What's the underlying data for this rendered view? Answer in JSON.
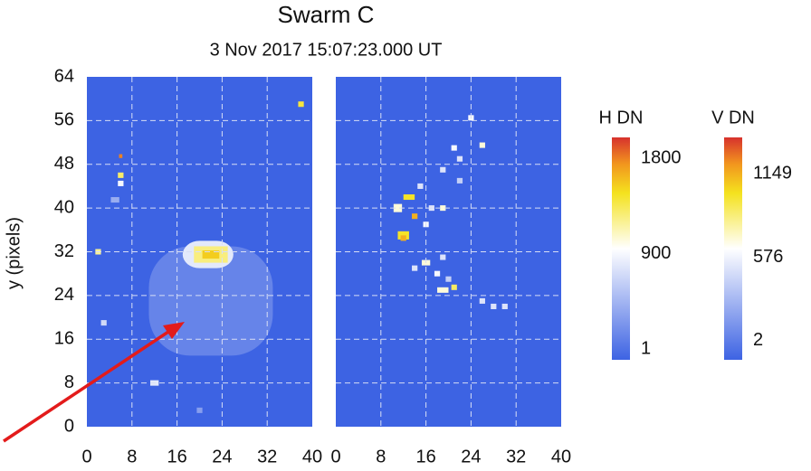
{
  "chart_data": {
    "type": "heatmap",
    "title": "Swarm C",
    "subtitle": "3 Nov 2017 15:07:23.000 UT",
    "y_label": "y (pixels)",
    "xlim": [
      0,
      40
    ],
    "xticks": [
      0,
      8,
      16,
      24,
      32,
      40
    ],
    "ylim": [
      0,
      64
    ],
    "yticks": [
      0,
      8,
      16,
      24,
      32,
      40,
      48,
      56,
      64
    ],
    "grid": true,
    "background_color": "#3d63e3",
    "panels": [
      {
        "colorbar_label": "H DN",
        "clim": [
          -100,
          2000
        ],
        "cticks": [
          1,
          900,
          1800
        ],
        "spots": [
          {
            "x": 22,
            "y": 23,
            "w": 22,
            "h": 20,
            "value": 120
          },
          {
            "x": 21.5,
            "y": 31.5,
            "w": 9,
            "h": 5,
            "value": 800
          },
          {
            "x": 22,
            "y": 31.5,
            "w": 6,
            "h": 3,
            "value": 1250
          },
          {
            "x": 22,
            "y": 31.5,
            "w": 3,
            "h": 1.5,
            "value": 1550
          },
          {
            "x": 38,
            "y": 59,
            "w": 1,
            "h": 1,
            "value": 1400
          },
          {
            "x": 6,
            "y": 49.5,
            "w": 0.6,
            "h": 0.7,
            "value": 1800
          },
          {
            "x": 6,
            "y": 46,
            "w": 1,
            "h": 1,
            "value": 1300
          },
          {
            "x": 6,
            "y": 44.5,
            "w": 1,
            "h": 1,
            "value": 900
          },
          {
            "x": 5,
            "y": 41.5,
            "w": 1.5,
            "h": 1,
            "value": 400
          },
          {
            "x": 2,
            "y": 32,
            "w": 1,
            "h": 1,
            "value": 1200
          },
          {
            "x": 3,
            "y": 19,
            "w": 1,
            "h": 1,
            "value": 700
          },
          {
            "x": 12,
            "y": 8,
            "w": 1.5,
            "h": 1,
            "value": 800
          },
          {
            "x": 20,
            "y": 3,
            "w": 1,
            "h": 1,
            "value": 300
          }
        ]
      },
      {
        "colorbar_label": "V DN",
        "clim": [
          -130,
          1400
        ],
        "cticks": [
          2,
          576,
          1149
        ],
        "spots": [
          {
            "x": 13,
            "y": 42,
            "w": 2,
            "h": 1,
            "value": 1000
          },
          {
            "x": 14,
            "y": 38.5,
            "w": 1,
            "h": 1,
            "value": 1149
          },
          {
            "x": 12,
            "y": 35,
            "w": 2,
            "h": 1.5,
            "value": 1000
          },
          {
            "x": 12,
            "y": 34.5,
            "w": 1,
            "h": 1,
            "value": 1149
          },
          {
            "x": 11,
            "y": 40,
            "w": 1.5,
            "h": 1.5,
            "value": 700
          },
          {
            "x": 16,
            "y": 37,
            "w": 1,
            "h": 1,
            "value": 600
          },
          {
            "x": 17,
            "y": 40,
            "w": 1,
            "h": 1,
            "value": 500
          },
          {
            "x": 19,
            "y": 40,
            "w": 1,
            "h": 1,
            "value": 700
          },
          {
            "x": 15,
            "y": 44,
            "w": 1,
            "h": 1,
            "value": 500
          },
          {
            "x": 19,
            "y": 47,
            "w": 1,
            "h": 1,
            "value": 500
          },
          {
            "x": 22,
            "y": 45,
            "w": 1,
            "h": 1,
            "value": 400
          },
          {
            "x": 22,
            "y": 49,
            "w": 1,
            "h": 1,
            "value": 500
          },
          {
            "x": 24,
            "y": 56.5,
            "w": 1,
            "h": 1,
            "value": 600
          },
          {
            "x": 26,
            "y": 51.5,
            "w": 1,
            "h": 1,
            "value": 700
          },
          {
            "x": 21,
            "y": 51,
            "w": 1,
            "h": 1,
            "value": 600
          },
          {
            "x": 16,
            "y": 30,
            "w": 1.5,
            "h": 1,
            "value": 700
          },
          {
            "x": 14,
            "y": 29,
            "w": 1,
            "h": 1,
            "value": 500
          },
          {
            "x": 19,
            "y": 31,
            "w": 1,
            "h": 1,
            "value": 500
          },
          {
            "x": 18,
            "y": 28,
            "w": 1,
            "h": 1,
            "value": 600
          },
          {
            "x": 20,
            "y": 27,
            "w": 1,
            "h": 1,
            "value": 400
          },
          {
            "x": 19,
            "y": 25,
            "w": 2,
            "h": 1,
            "value": 700
          },
          {
            "x": 21,
            "y": 25.5,
            "w": 1,
            "h": 1,
            "value": 900
          },
          {
            "x": 26,
            "y": 23,
            "w": 1,
            "h": 1,
            "value": 500
          },
          {
            "x": 28,
            "y": 22,
            "w": 1,
            "h": 1,
            "value": 500
          },
          {
            "x": 30,
            "y": 22,
            "w": 1,
            "h": 1,
            "value": 500
          }
        ]
      }
    ]
  }
}
